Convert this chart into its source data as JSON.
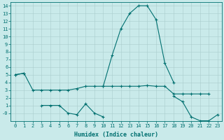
{
  "x": [
    0,
    1,
    2,
    3,
    4,
    5,
    6,
    7,
    8,
    9,
    10,
    11,
    12,
    13,
    14,
    15,
    16,
    17,
    18,
    19,
    20,
    21,
    22,
    23
  ],
  "line1": [
    5.0,
    5.2,
    3.0,
    3.0,
    3.0,
    3.0,
    3.0,
    3.2,
    3.5,
    3.5,
    3.5,
    3.5,
    3.5,
    3.5,
    3.5,
    3.6,
    3.5,
    3.5,
    2.5,
    2.5,
    2.5,
    2.5,
    2.5,
    null
  ],
  "line2": [
    5.0,
    5.2,
    null,
    null,
    null,
    null,
    null,
    null,
    null,
    null,
    3.5,
    7.5,
    11.0,
    13.0,
    14.0,
    14.0,
    12.2,
    6.5,
    4.0,
    null,
    null,
    null,
    null,
    null
  ],
  "line3": [
    null,
    null,
    null,
    1.0,
    1.0,
    1.0,
    -0.0,
    -0.2,
    1.2,
    0.0,
    -0.5,
    null,
    null,
    null,
    null,
    null,
    null,
    null,
    2.2,
    1.5,
    -0.5,
    -1.0,
    -1.0,
    -0.2
  ],
  "bg_color": "#c9eaea",
  "grid_color": "#aacccc",
  "line_color": "#007070",
  "xlabel": "Humidex (Indice chaleur)",
  "ylim": [
    -1.0,
    14.5
  ],
  "xlim": [
    -0.5,
    23.5
  ],
  "xticks": [
    0,
    1,
    2,
    3,
    4,
    5,
    6,
    7,
    8,
    9,
    10,
    11,
    12,
    13,
    14,
    15,
    16,
    17,
    18,
    19,
    20,
    21,
    22,
    23
  ],
  "yticks": [
    0,
    1,
    2,
    3,
    4,
    5,
    6,
    7,
    8,
    9,
    10,
    11,
    12,
    13,
    14
  ],
  "ylabel_special": "-0",
  "tick_fontsize": 5.0,
  "xlabel_fontsize": 6.0,
  "marker_size": 3.0,
  "line_width": 0.8
}
